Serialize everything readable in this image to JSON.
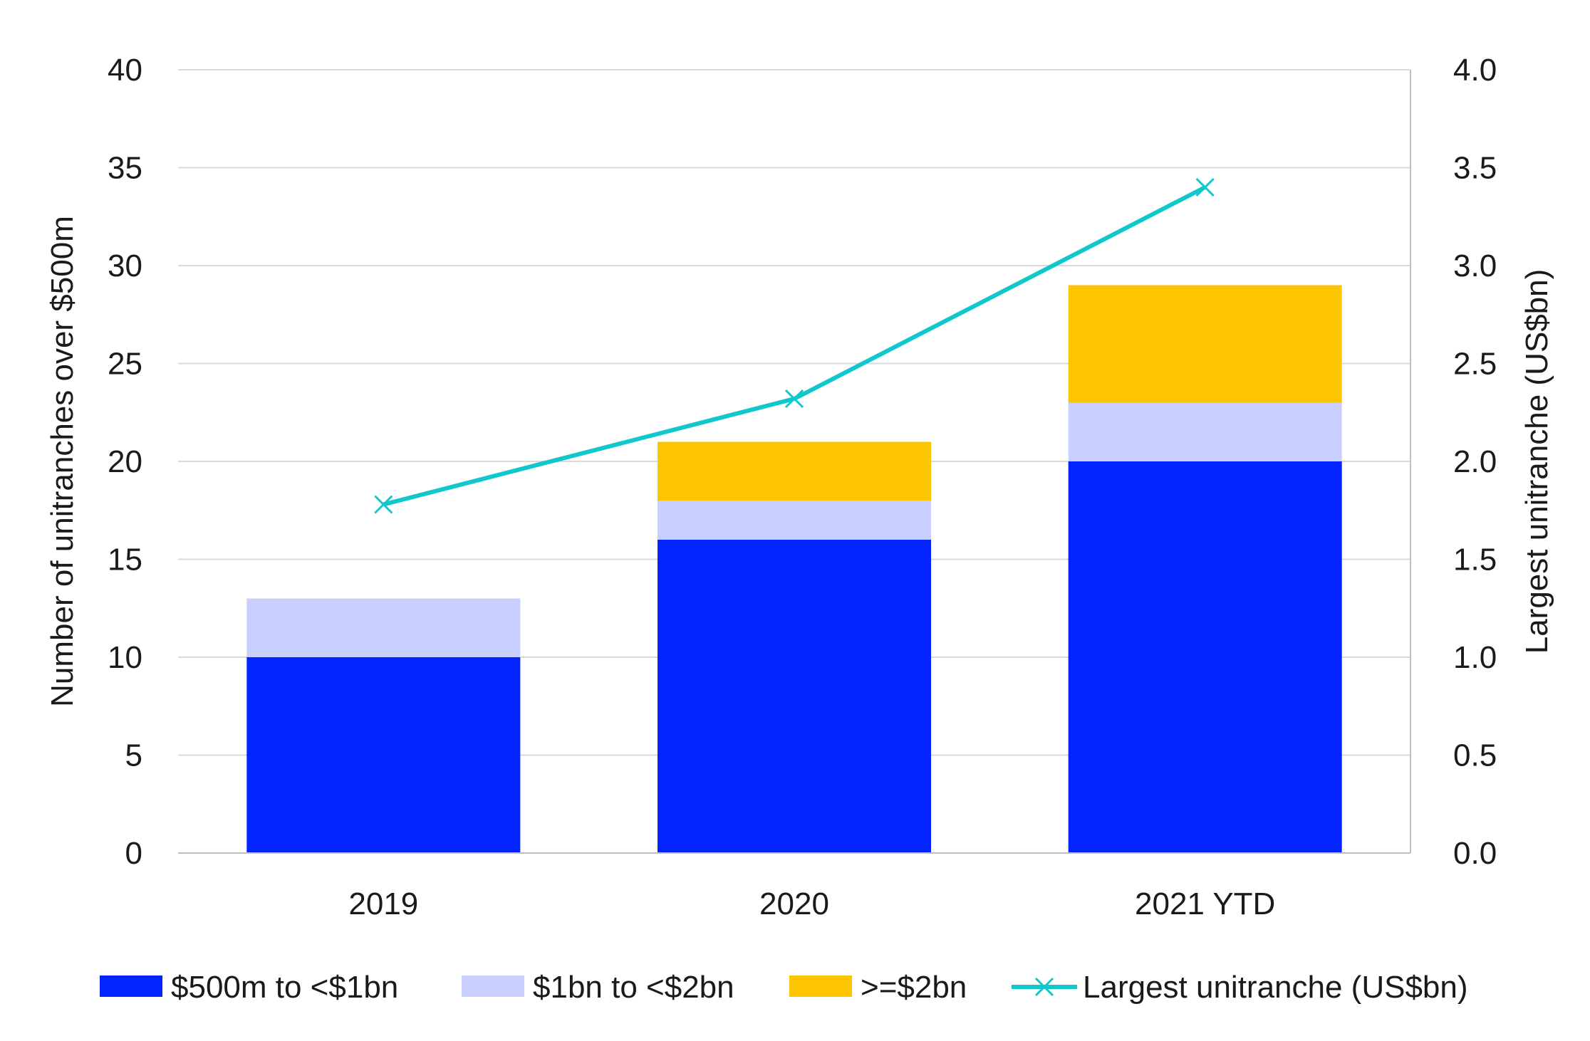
{
  "chart_data": {
    "type": "bar",
    "stacked": true,
    "categories": [
      "2019",
      "2020",
      "2021 YTD"
    ],
    "series": [
      {
        "name": "$500m to <$1bn",
        "values": [
          10,
          16,
          20
        ],
        "color": "#0324FF",
        "axis": "left"
      },
      {
        "name": "$1bn to <$2bn",
        "values": [
          3,
          2,
          3
        ],
        "color": "#C9CFFF",
        "axis": "left"
      },
      {
        "name": ">=$2bn",
        "values": [
          0,
          3,
          6
        ],
        "color": "#FDC500",
        "axis": "left"
      }
    ],
    "line_series": [
      {
        "name": "Largest unitranche (US$bn)",
        "values": [
          1.78,
          2.32,
          3.4
        ],
        "color": "#10C8CB",
        "axis": "right",
        "marker": "x"
      }
    ],
    "ylabel": "Number of unitranches over $500m",
    "y2label": "Largest unitranche (US$bn)",
    "ylim": [
      0,
      40
    ],
    "y2lim": [
      0,
      4
    ],
    "yticks": [
      "0",
      "5",
      "10",
      "15",
      "20",
      "25",
      "30",
      "35",
      "40"
    ],
    "y2ticks": [
      "0.0",
      "0.5",
      "1.0",
      "1.5",
      "2.0",
      "2.5",
      "3.0",
      "3.5",
      "4.0"
    ],
    "grid": true,
    "legend_position": "bottom"
  }
}
